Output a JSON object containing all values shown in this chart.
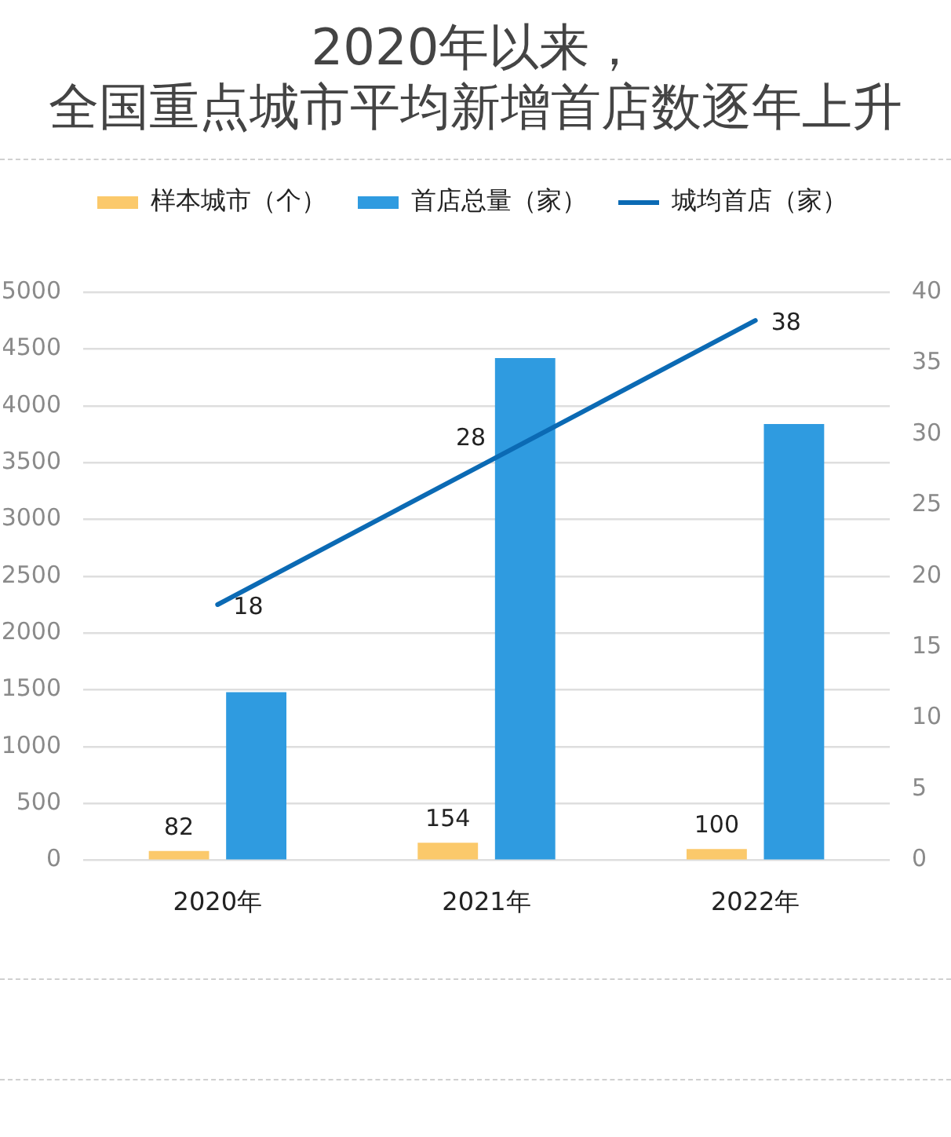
{
  "chart_data": {
    "type": "bar",
    "title": "2020年以来，全国重点城市平均新增首店数逐年上升",
    "categories": [
      "2020年",
      "2021年",
      "2022年"
    ],
    "series": [
      {
        "name": "样本城市（个）",
        "color": "#fbc96b",
        "values": [
          82,
          154,
          100
        ],
        "value_labels": [
          "82",
          "154",
          "100"
        ]
      },
      {
        "name": "首店总量（家）",
        "color": "#2f9be0",
        "values": [
          1480,
          4420,
          3840
        ]
      },
      {
        "name": "城均首店（家）",
        "type": "line",
        "axis": "y2",
        "color": "#0b6ab4",
        "values": [
          18,
          28,
          38
        ],
        "value_labels": [
          "18",
          "28",
          "38"
        ]
      }
    ],
    "ylim": [
      0,
      5000
    ],
    "yticks": [
      0,
      500,
      1000,
      1500,
      2000,
      2500,
      3000,
      3500,
      4000,
      4500,
      5000
    ],
    "y2lim": [
      0,
      40
    ],
    "y2ticks": [
      0,
      5,
      10,
      15,
      20,
      25,
      30,
      35,
      40
    ],
    "grid": "y",
    "legend": "top",
    "marker": "none",
    "line_style": "solid"
  }
}
